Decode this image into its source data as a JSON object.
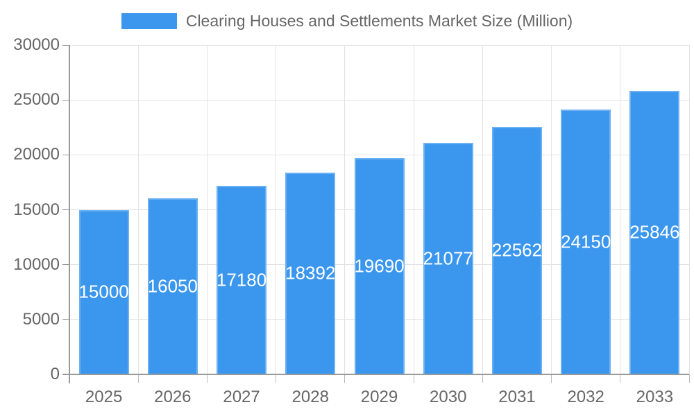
{
  "legend": {
    "label": "Clearing Houses and Settlements Market Size (Million)"
  },
  "chart_data": {
    "type": "bar",
    "title": "Clearing Houses and Settlements Market Size (Million)",
    "categories": [
      "2025",
      "2026",
      "2027",
      "2028",
      "2029",
      "2030",
      "2031",
      "2032",
      "2033"
    ],
    "values": [
      15000,
      16050,
      17180,
      18392,
      19690,
      21077,
      22562,
      24150,
      25846
    ],
    "xlabel": "",
    "ylabel": "",
    "ylim": [
      0,
      30000
    ],
    "yticks": [
      0,
      5000,
      10000,
      15000,
      20000,
      25000,
      30000
    ],
    "grid": true,
    "legend_position": "top",
    "value_labels": "inside-center",
    "colors": {
      "bar": "#3b97ee",
      "value_label": "#ffffff",
      "grid": "#e3e3e3",
      "axis": "#999999",
      "boundary_tick": "#bbbbbb",
      "tick_text": "#666666"
    }
  }
}
